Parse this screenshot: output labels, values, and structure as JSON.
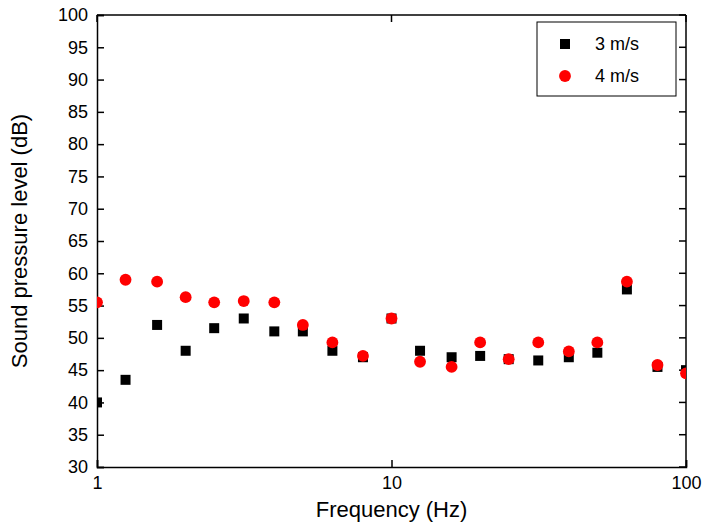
{
  "chart_data": {
    "type": "scatter",
    "x_label": "Frequency (Hz)",
    "y_label": "Sound pressure level (dB)",
    "x": [
      1,
      1.25,
      1.6,
      2,
      2.5,
      3.15,
      4,
      5,
      6.3,
      8,
      10,
      12.5,
      16,
      20,
      25,
      31.5,
      40,
      50,
      63,
      80,
      100
    ],
    "series": [
      {
        "name": "3 m/s",
        "color": "#000000",
        "marker": "square",
        "values": [
          40,
          43.5,
          52,
          48,
          51.5,
          53,
          51,
          51,
          48,
          47,
          53,
          48,
          47,
          47.2,
          46.7,
          46.5,
          47,
          47.7,
          57.5,
          45.5,
          45
        ]
      },
      {
        "name": "4 m/s",
        "color": "#ff0000",
        "marker": "circle",
        "values": [
          55.5,
          59,
          58.7,
          56.3,
          55.5,
          55.7,
          55.5,
          52,
          49.3,
          47.2,
          53,
          46.3,
          45.5,
          49.3,
          46.7,
          49.3,
          47.9,
          49.3,
          58.7,
          45.8,
          44.5
        ]
      }
    ],
    "log": "x",
    "xlim": [
      1,
      100
    ],
    "xticks": [
      1,
      10,
      100
    ],
    "ylim": [
      30,
      100
    ],
    "yticks": [
      30,
      35,
      40,
      45,
      50,
      55,
      60,
      65,
      70,
      75,
      80,
      85,
      90,
      95,
      100
    ],
    "legend": "top-right",
    "grid": false
  }
}
